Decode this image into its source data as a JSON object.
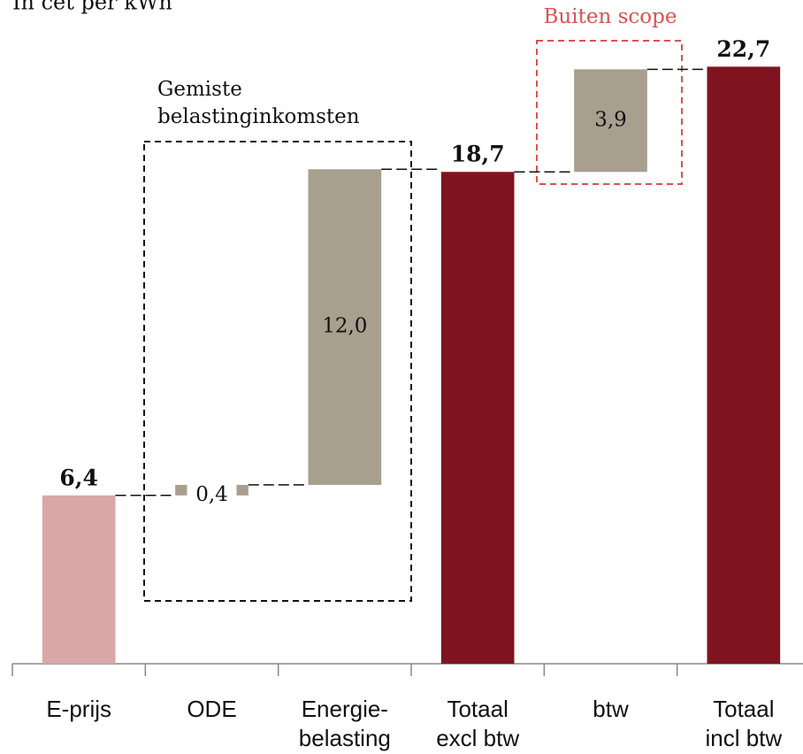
{
  "chart_data": {
    "type": "waterfall",
    "title": "In cet per kWh",
    "categories": [
      [
        "E-prijs"
      ],
      [
        "ODE"
      ],
      [
        "Energie-",
        "belasting"
      ],
      [
        "Totaal",
        "excl btw"
      ],
      [
        "btw"
      ],
      [
        "Totaal",
        "incl btw"
      ]
    ],
    "measures": [
      "absolute",
      "relative",
      "relative",
      "total",
      "relative",
      "total"
    ],
    "values": [
      6.4,
      0.4,
      12.0,
      18.7,
      3.9,
      22.7
    ],
    "value_labels": [
      "6,4",
      "0,4",
      "12,0",
      "18,7",
      "3,9",
      "22,7"
    ],
    "colors": [
      "#d9a7a8",
      "#a89f8e",
      "#a89f8e",
      "#7f1420",
      "#a89f8e",
      "#7f1420"
    ],
    "ylim": [
      0,
      25
    ],
    "annotations": [
      {
        "lines": [
          "Gemiste",
          "belastinginkomsten"
        ],
        "color": "#111111"
      },
      {
        "lines": [
          "Buiten scope"
        ],
        "color": "#d9534f"
      }
    ]
  }
}
